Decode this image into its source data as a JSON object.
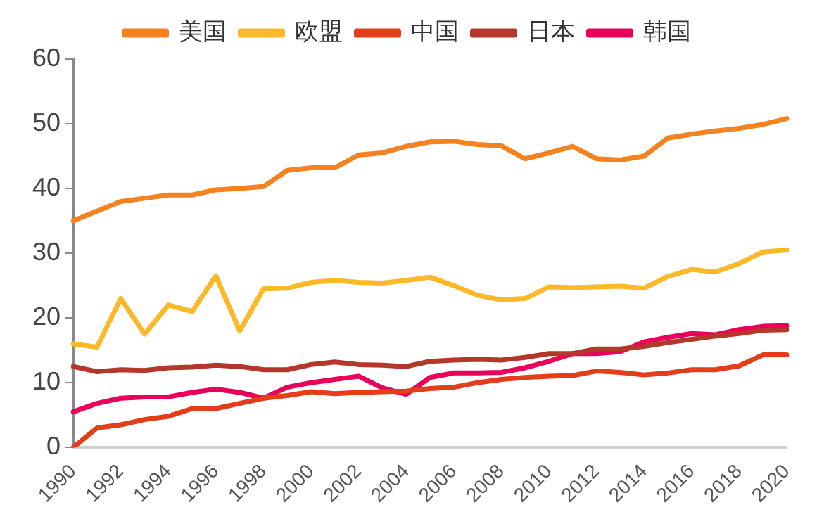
{
  "chart_data": {
    "type": "line",
    "categories": [
      "1990",
      null,
      "1992",
      null,
      "1994",
      null,
      "1996",
      null,
      "1998",
      null,
      "2000",
      null,
      "2002",
      null,
      "2004",
      null,
      "2006",
      null,
      "2008",
      null,
      "2010",
      null,
      "2012",
      null,
      "2014",
      null,
      "2016",
      null,
      "2018",
      null,
      "2020"
    ],
    "series": [
      {
        "name": "美国",
        "color": "#f5821f",
        "values": [
          35,
          36.5,
          38,
          38.5,
          39,
          39,
          39.8,
          40,
          40.3,
          42.8,
          43.2,
          43.2,
          45.2,
          45.5,
          46.5,
          47.2,
          47.3,
          46.8,
          46.6,
          44.6,
          45.5,
          46.5,
          44.6,
          44.4,
          45,
          47.8,
          48.4,
          48.9,
          49.3,
          49.9,
          50.8
        ]
      },
      {
        "name": "欧盟",
        "color": "#fbb829",
        "values": [
          16,
          15.5,
          23,
          17.5,
          22,
          21,
          26.5,
          18,
          24.5,
          24.6,
          25.5,
          25.8,
          25.5,
          25.4,
          25.8,
          26.3,
          25,
          23.5,
          22.8,
          23,
          24.8,
          24.7,
          24.8,
          24.9,
          24.6,
          26.4,
          27.5,
          27.1,
          28.4,
          30.2,
          30.5
        ]
      },
      {
        "name": "中国",
        "color": "#e43d1a",
        "values": [
          0,
          3,
          3.5,
          4.3,
          4.8,
          6,
          6,
          6.8,
          7.6,
          8,
          8.6,
          8.3,
          8.5,
          8.6,
          8.7,
          9.1,
          9.3,
          10,
          10.5,
          10.8,
          11,
          11.1,
          11.8,
          11.6,
          11.2,
          11.5,
          12,
          12,
          12.6,
          14.3,
          14.3
        ]
      },
      {
        "name": "日本",
        "color": "#b5372c",
        "values": [
          12.5,
          11.7,
          12,
          11.9,
          12.3,
          12.4,
          12.7,
          12.5,
          12,
          12,
          12.8,
          13.2,
          12.8,
          12.7,
          12.5,
          13.3,
          13.5,
          13.6,
          13.5,
          13.9,
          14.5,
          14.5,
          15.2,
          15.2,
          15.6,
          16.2,
          16.7,
          17.2,
          17.6,
          18.1,
          18.2
        ]
      },
      {
        "name": "韩国",
        "color": "#e8005a",
        "values": [
          5.5,
          6.8,
          7.6,
          7.8,
          7.8,
          8.5,
          9,
          8.5,
          7.6,
          9.3,
          10,
          10.5,
          11,
          9.2,
          8.2,
          10.8,
          11.5,
          11.5,
          11.6,
          12.3,
          13.3,
          14.5,
          14.5,
          14.8,
          16.3,
          17,
          17.6,
          17.4,
          18.2,
          18.7,
          18.8
        ]
      }
    ],
    "ylim": [
      0,
      60
    ],
    "yticks": [
      0,
      10,
      20,
      30,
      40,
      50,
      60
    ],
    "grid": false,
    "legend": "top",
    "marker": "none",
    "line_style": "solid"
  }
}
